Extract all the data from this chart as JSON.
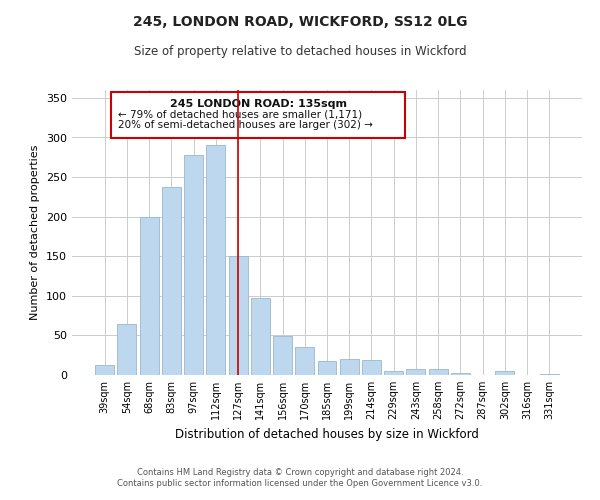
{
  "title": "245, LONDON ROAD, WICKFORD, SS12 0LG",
  "subtitle": "Size of property relative to detached houses in Wickford",
  "xlabel": "Distribution of detached houses by size in Wickford",
  "ylabel": "Number of detached properties",
  "bar_labels": [
    "39sqm",
    "54sqm",
    "68sqm",
    "83sqm",
    "97sqm",
    "112sqm",
    "127sqm",
    "141sqm",
    "156sqm",
    "170sqm",
    "185sqm",
    "199sqm",
    "214sqm",
    "229sqm",
    "243sqm",
    "258sqm",
    "272sqm",
    "287sqm",
    "302sqm",
    "316sqm",
    "331sqm"
  ],
  "bar_values": [
    13,
    65,
    200,
    238,
    278,
    290,
    150,
    97,
    49,
    35,
    18,
    20,
    19,
    5,
    8,
    8,
    2,
    0,
    5,
    0,
    1
  ],
  "bar_color": "#bdd7ee",
  "bar_edge_color": "#9ab8d0",
  "vline_index": 6,
  "vline_color": "#cc0000",
  "ylim": [
    0,
    360
  ],
  "yticks": [
    0,
    50,
    100,
    150,
    200,
    250,
    300,
    350
  ],
  "annotation_title": "245 LONDON ROAD: 135sqm",
  "annotation_line1": "← 79% of detached houses are smaller (1,171)",
  "annotation_line2": "20% of semi-detached houses are larger (302) →",
  "annotation_box_color": "#ffffff",
  "annotation_box_edge": "#cc0000",
  "footer_line1": "Contains HM Land Registry data © Crown copyright and database right 2024.",
  "footer_line2": "Contains public sector information licensed under the Open Government Licence v3.0.",
  "background_color": "#ffffff",
  "grid_color": "#cccccc"
}
